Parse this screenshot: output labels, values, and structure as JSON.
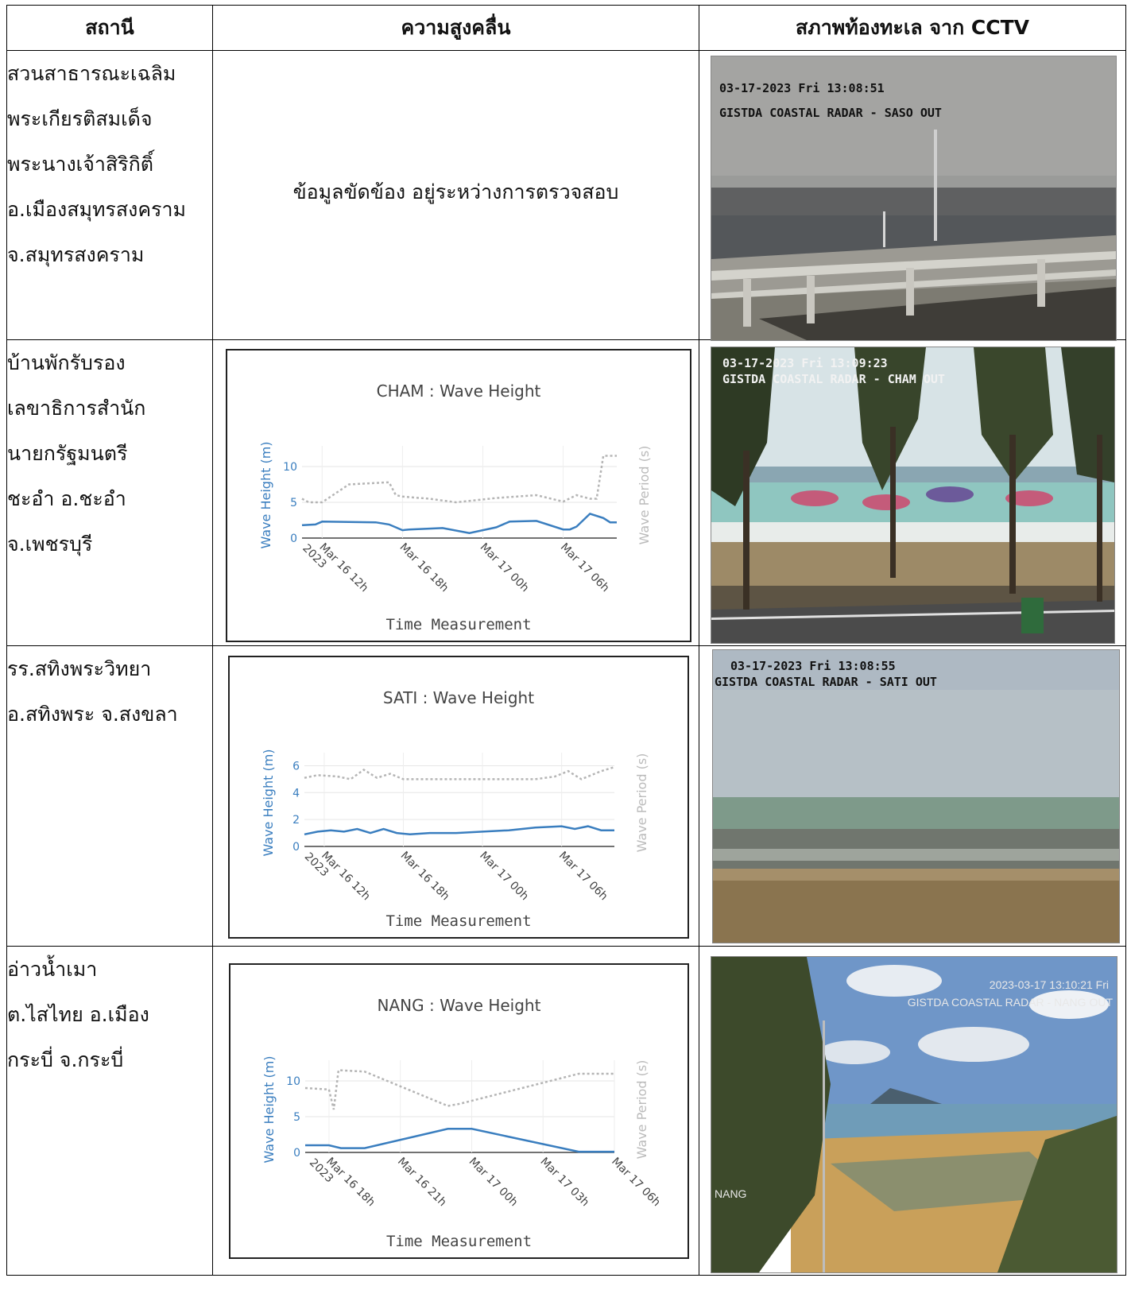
{
  "table": {
    "headers": [
      "สถานี",
      "ความสูงคลื่น",
      "สภาพท้องทะเล จาก CCTV"
    ]
  },
  "rows": [
    {
      "station_lines": [
        "สวนสาธารณะเฉลิม",
        "พระเกียรติสมเด็จ",
        "พระนางเจ้าสิริกิติ์",
        "อ.เมืองสมุทรสงคราม",
        "จ.สมุทรสงคราม"
      ],
      "message": "ข้อมูลขัดข้อง อยู่ระหว่างการตรวจสอบ",
      "camera": {
        "line1": "03-17-2023 Fri 13:08:51",
        "line2": "GISTDA COASTAL RADAR - SASO OUT"
      }
    },
    {
      "station_lines": [
        "บ้านพักรับรอง",
        "เลขาธิการสำนัก",
        "นายกรัฐมนตรี",
        "ชะอำ อ.ชะอำ",
        "จ.เพชรบุรี"
      ],
      "camera": {
        "line1": "03-17-2023 Fri 13:09:23",
        "line2": "GISTDA COASTAL RADAR - CHAM OUT"
      }
    },
    {
      "station_lines": [
        "รร.สทิงพระวิทยา",
        "อ.สทิงพระ จ.สงขลา"
      ],
      "camera": {
        "line1": "03-17-2023 Fri 13:08:55",
        "line2": "GISTDA COASTAL RADAR - SATI OUT"
      }
    },
    {
      "station_lines": [
        "อ่าวน้ำเมา",
        "ต.ไสไทย  อ.เมือง",
        "กระบี่ จ.กระบี่"
      ],
      "camera": {
        "line1": "2023-03-17 13:10:21 Fri",
        "line2": "GISTDA COASTAL RADAR - NANG OUT",
        "label": "NANG"
      }
    }
  ],
  "colors": {
    "wave_height": "#3a7ebf",
    "wave_period": "#b5b5b5"
  },
  "chart_data": [
    {
      "type": "line",
      "title": "CHAM : Wave Height",
      "xlabel": "Time Measurement",
      "ylabel": "Wave Height (m)",
      "y2label": "Wave Period (s)",
      "x_ticks": [
        "Mar 16 12h 2023",
        "Mar 16 18h",
        "Mar 17 00h",
        "Mar 17 06h"
      ],
      "y_ticks": [
        0,
        5,
        10
      ],
      "ylim": [
        0,
        12
      ],
      "x_range_hours": [
        10.5,
        34
      ],
      "series": [
        {
          "name": "Wave Height (m)",
          "style": "solid",
          "x": [
            10.5,
            11.5,
            12,
            16,
            17,
            17.5,
            18,
            18.5,
            21,
            23,
            25,
            26,
            28,
            30,
            30.5,
            31,
            32,
            33,
            33.5,
            34
          ],
          "y": [
            1.8,
            1.9,
            2.3,
            2.2,
            1.9,
            1.5,
            1.1,
            1.2,
            1.4,
            0.7,
            1.5,
            2.3,
            2.4,
            1.2,
            1.2,
            1.6,
            3.4,
            2.8,
            2.2,
            2.2
          ]
        },
        {
          "name": "Wave Period (s)",
          "style": "dotted",
          "x": [
            10.5,
            11,
            12,
            14,
            17,
            17.5,
            18,
            20,
            22,
            25,
            28,
            30,
            31,
            32,
            32.5,
            33,
            34
          ],
          "y": [
            5.5,
            5,
            5,
            7.5,
            7.8,
            6,
            5.8,
            5.5,
            5,
            5.6,
            6,
            5.1,
            6,
            5.5,
            5.5,
            11.5,
            11.5
          ]
        }
      ]
    },
    {
      "type": "line",
      "title": "SATI : Wave Height",
      "xlabel": "Time Measurement",
      "ylabel": "Wave Height (m)",
      "y2label": "Wave Period (s)",
      "x_ticks": [
        "Mar 16 12h 2023",
        "Mar 16 18h",
        "Mar 17 00h",
        "Mar 17 06h"
      ],
      "y_ticks": [
        0,
        2,
        4,
        6
      ],
      "ylim": [
        0,
        6.5
      ],
      "x_range_hours": [
        10.5,
        34
      ],
      "series": [
        {
          "name": "Wave Height (m)",
          "style": "solid",
          "x": [
            10.5,
            11.5,
            12.5,
            13.5,
            14.5,
            15.5,
            16.5,
            17.5,
            18.5,
            20,
            22,
            24,
            26,
            28,
            30,
            31,
            32,
            33,
            34
          ],
          "y": [
            0.9,
            1.1,
            1.2,
            1.1,
            1.3,
            1.0,
            1.3,
            1.0,
            0.9,
            1.0,
            1.0,
            1.1,
            1.2,
            1.4,
            1.5,
            1.3,
            1.5,
            1.2,
            1.2
          ]
        },
        {
          "name": "Wave Period (s)",
          "style": "dotted",
          "x": [
            10.5,
            11.5,
            13,
            14,
            15,
            16,
            17,
            18,
            20,
            22,
            24,
            26,
            28,
            29.5,
            30.5,
            31.5,
            33,
            34
          ],
          "y": [
            5.1,
            5.3,
            5.2,
            5.0,
            5.7,
            5.1,
            5.4,
            5.0,
            5.0,
            5.0,
            5.0,
            5.0,
            5.0,
            5.2,
            5.6,
            5.0,
            5.6,
            5.9
          ]
        }
      ]
    },
    {
      "type": "line",
      "title": "NANG : Wave Height",
      "xlabel": "Time Measurement",
      "ylabel": "Wave Height (m)",
      "y2label": "Wave Period (s)",
      "x_ticks": [
        "Mar 16 18h 2023",
        "Mar 16 21h",
        "Mar 17 00h",
        "Mar 17 03h",
        "Mar 17 06h"
      ],
      "y_ticks": [
        0,
        5,
        10
      ],
      "ylim": [
        0,
        12
      ],
      "x_range_hours": [
        17,
        30
      ],
      "series": [
        {
          "name": "Wave Height (m)",
          "style": "solid",
          "x": [
            17,
            18,
            18.5,
            19.5,
            23,
            24,
            28.5,
            29.5,
            30
          ],
          "y": [
            1.0,
            1.0,
            0.6,
            0.6,
            3.3,
            3.3,
            0.1,
            0.1,
            0.1
          ]
        },
        {
          "name": "Wave Period (s)",
          "style": "dotted",
          "x": [
            17,
            18,
            18.2,
            18.4,
            19.5,
            23,
            23.5,
            28.5,
            30
          ],
          "y": [
            9.0,
            8.8,
            6.0,
            11.5,
            11.3,
            6.5,
            6.8,
            11.0,
            11.0
          ]
        }
      ]
    }
  ]
}
